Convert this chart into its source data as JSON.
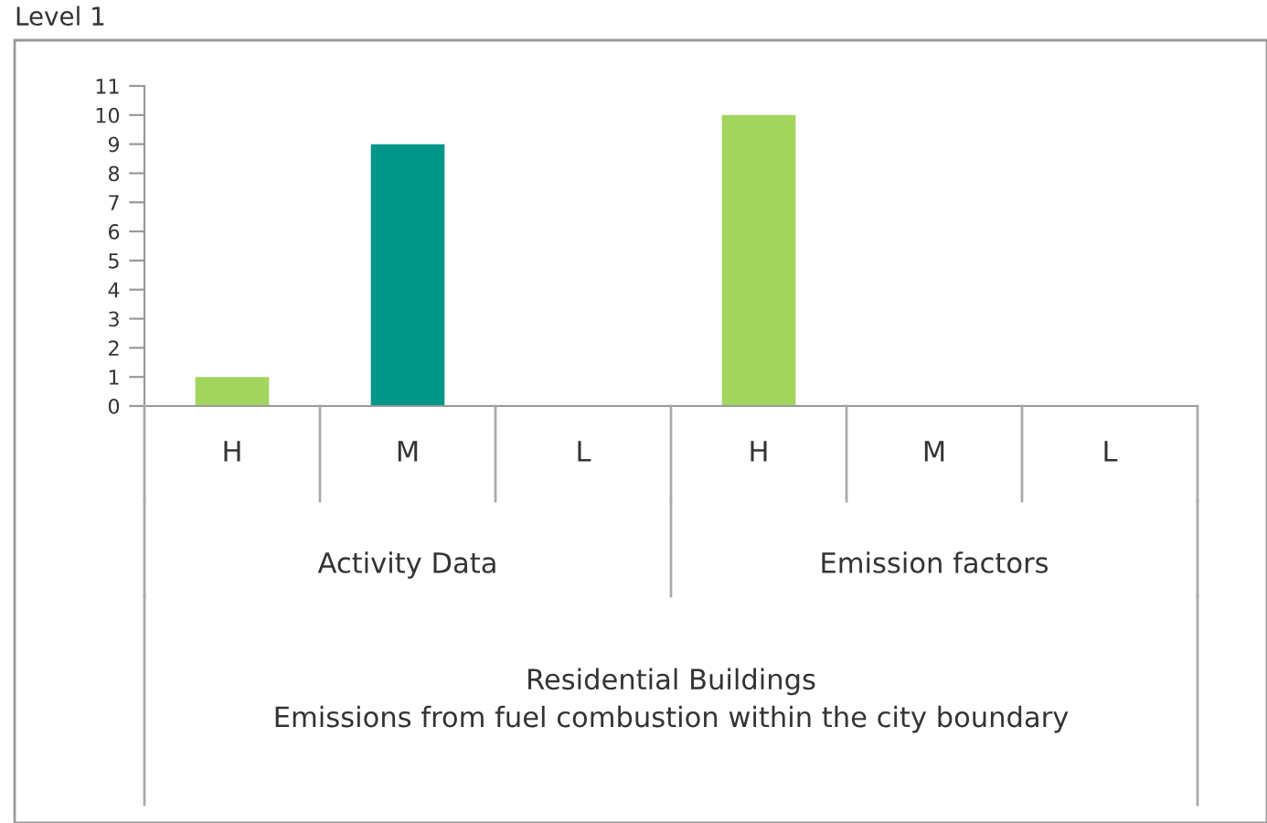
{
  "chart_data": {
    "type": "bar",
    "title": "Level 1",
    "categories": [
      "H",
      "M",
      "L",
      "H",
      "M",
      "L"
    ],
    "values": [
      1,
      9,
      0,
      10,
      0,
      0
    ],
    "colors": [
      "#a2d45e",
      "#009688",
      "#009688",
      "#a2d45e",
      "#009688",
      "#009688"
    ],
    "ylim": [
      0,
      11
    ],
    "yticks": [
      0,
      1,
      2,
      3,
      4,
      5,
      6,
      7,
      8,
      9,
      10,
      11
    ],
    "annotations": [
      "Activity Data",
      "Emission factors",
      "Residential Buildings\nEmissions from fuel combustion within the city boundary"
    ]
  }
}
